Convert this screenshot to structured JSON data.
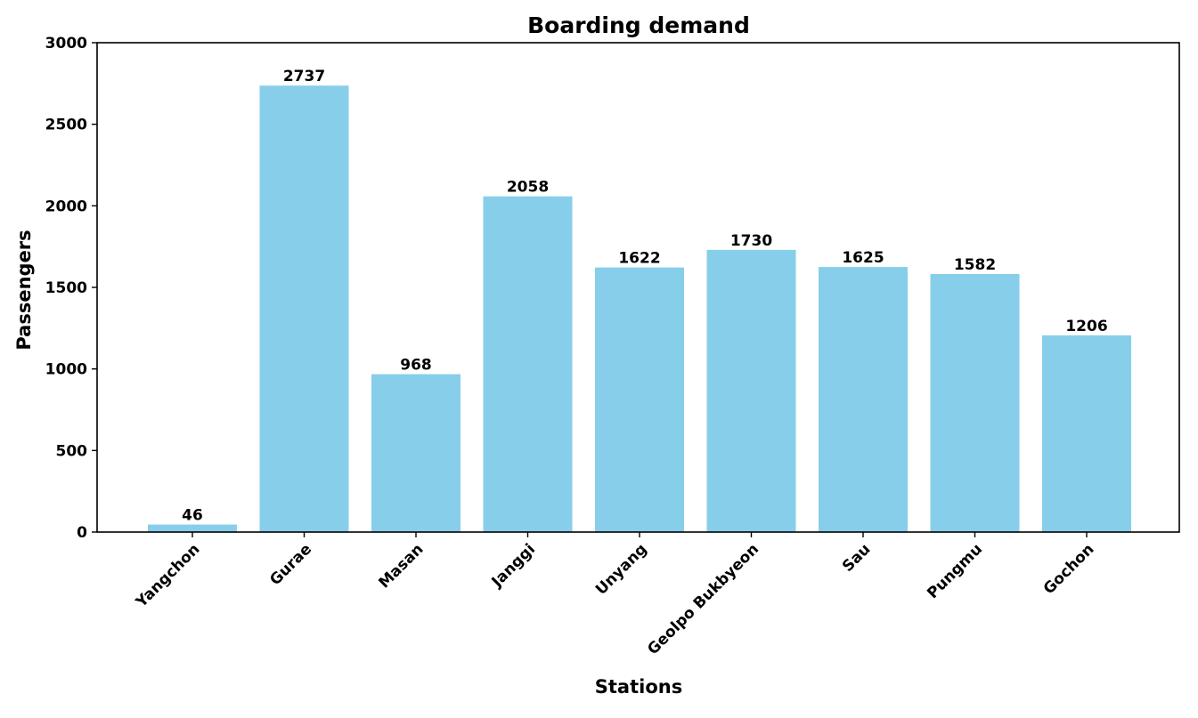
{
  "chart_data": {
    "type": "bar",
    "title": "Boarding demand",
    "xlabel": "Stations",
    "ylabel": "Passengers",
    "categories": [
      "Yangchon",
      "Gurae",
      "Masan",
      "Janggi",
      "Unyang",
      "Geolpo Bukbyeon",
      "Sau",
      "Pungmu",
      "Gochon"
    ],
    "values": [
      46,
      2737,
      968,
      2058,
      1622,
      1730,
      1625,
      1582,
      1206
    ],
    "ylim": [
      0,
      3000
    ],
    "yticks": [
      "0",
      "500",
      "1000",
      "1500",
      "2000",
      "2500",
      "3000"
    ],
    "ytick_values": [
      0,
      500,
      1000,
      1500,
      2000,
      2500,
      3000
    ],
    "grid": false,
    "bar_color": "#87CEEB",
    "data_labels": [
      "46",
      "2737",
      "968",
      "2058",
      "1622",
      "1730",
      "1625",
      "1582",
      "1206"
    ]
  }
}
